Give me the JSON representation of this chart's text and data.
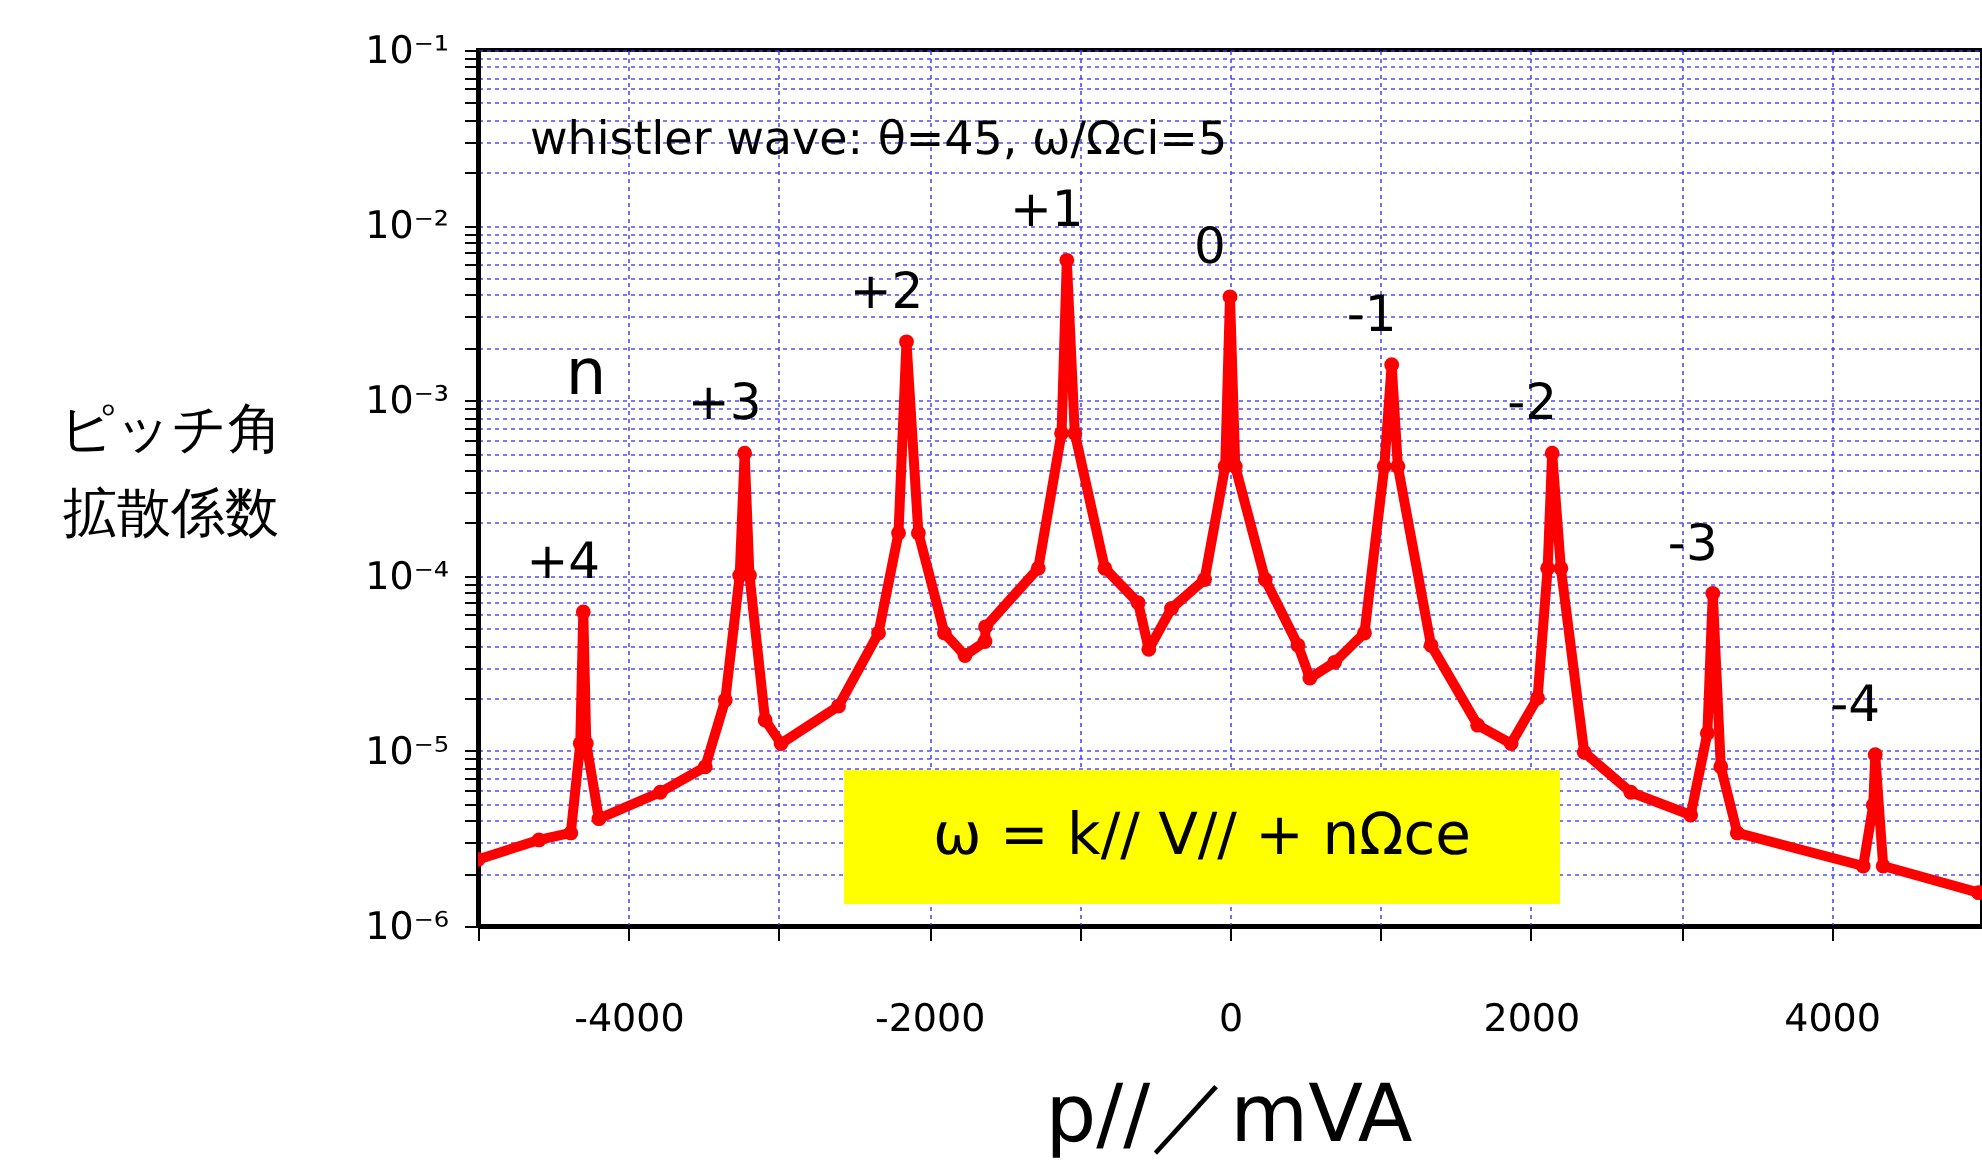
{
  "chart_data": {
    "type": "line",
    "title": "whistler wave:  θ=45, ω/Ωci=5",
    "xlabel": "p//／mVA",
    "ylabel": "ピッチ角拡散係数",
    "annotations": [
      {
        "text": "+4",
        "x": -4300,
        "y": 6.2e-05
      },
      {
        "text": "+3",
        "x": -3227,
        "y": 0.0005
      },
      {
        "text": "+2",
        "x": -2151,
        "y": 0.00216
      },
      {
        "text": "+1",
        "x": -1085,
        "y": 0.0063
      },
      {
        "text": "0",
        "x": 0,
        "y": 0.0039
      },
      {
        "text": "-1",
        "x": 1075,
        "y": 0.0016
      },
      {
        "text": "-2",
        "x": 2142,
        "y": 0.0005
      },
      {
        "text": "-3",
        "x": 3210,
        "y": 7.9e-05
      },
      {
        "text": "-4",
        "x": 4290,
        "y": 9.5e-06
      },
      "n",
      "ω = k// V//  +  nΩce"
    ],
    "log": "y",
    "grid": true,
    "marker": "circle",
    "line_style": "solid",
    "xlim": [
      -5000,
      5000
    ],
    "ylim": [
      1e-06,
      0.1
    ],
    "xticks": [
      {
        "value": -5000,
        "label": null
      },
      -4000,
      {
        "value": -3000,
        "label": null
      },
      -2000,
      {
        "value": -1000,
        "label": null
      },
      0,
      {
        "value": 1000,
        "label": null
      },
      2000,
      {
        "value": 3000,
        "label": null
      },
      4000,
      {
        "value": 5000,
        "label": null
      }
    ],
    "yticks": [
      {
        "value": 1e-06,
        "label": "10⁻⁶"
      },
      {
        "value": 2e-06,
        "label": null
      },
      {
        "value": 3e-06,
        "label": null
      },
      {
        "value": 4e-06,
        "label": null
      },
      {
        "value": 5e-06,
        "label": null
      },
      {
        "value": 6e-06,
        "label": null
      },
      {
        "value": 7e-06,
        "label": null
      },
      {
        "value": 8e-06,
        "label": null
      },
      {
        "value": 9e-06,
        "label": null
      },
      {
        "value": 1e-05,
        "label": "10⁻⁵"
      },
      {
        "value": 2e-05,
        "label": null
      },
      {
        "value": 3e-05,
        "label": null
      },
      {
        "value": 4e-05,
        "label": null
      },
      {
        "value": 5e-05,
        "label": null
      },
      {
        "value": 6e-05,
        "label": null
      },
      {
        "value": 7e-05,
        "label": null
      },
      {
        "value": 8e-05,
        "label": null
      },
      {
        "value": 9e-05,
        "label": null
      },
      {
        "value": 0.0001,
        "label": "10⁻⁴"
      },
      {
        "value": 0.0002,
        "label": null
      },
      {
        "value": 0.0003,
        "label": null
      },
      {
        "value": 0.0004,
        "label": null
      },
      {
        "value": 0.0005,
        "label": null
      },
      {
        "value": 0.0006,
        "label": null
      },
      {
        "value": 0.0007,
        "label": null
      },
      {
        "value": 0.0008,
        "label": null
      },
      {
        "value": 0.0009,
        "label": null
      },
      {
        "value": 0.001,
        "label": "10⁻³"
      },
      {
        "value": 0.002,
        "label": null
      },
      {
        "value": 0.003,
        "label": null
      },
      {
        "value": 0.004,
        "label": null
      },
      {
        "value": 0.005,
        "label": null
      },
      {
        "value": 0.006,
        "label": null
      },
      {
        "value": 0.007,
        "label": null
      },
      {
        "value": 0.008,
        "label": null
      },
      {
        "value": 0.009,
        "label": null
      },
      {
        "value": 0.01,
        "label": "10⁻²"
      },
      {
        "value": 0.02,
        "label": null
      },
      {
        "value": 0.03,
        "label": null
      },
      {
        "value": 0.04,
        "label": null
      },
      {
        "value": 0.05,
        "label": null
      },
      {
        "value": 0.06,
        "label": null
      },
      {
        "value": 0.07,
        "label": null
      },
      {
        "value": 0.08,
        "label": null
      },
      {
        "value": 0.09,
        "label": null
      },
      {
        "value": 0.1,
        "label": "10⁻¹"
      }
    ],
    "series": [
      {
        "color": "#ff0000",
        "x": [
          -5000,
          -4595,
          -4383,
          -4320,
          -4300,
          -4280,
          -4196,
          -3788,
          -3489,
          -3356,
          -3260,
          -3227,
          -3195,
          -3091,
          -2985,
          -2603,
          -2337,
          -2204,
          -2151,
          -2072,
          -1899,
          -1762,
          -1629,
          -1625,
          -1275,
          -1120,
          -1085,
          -1032,
          -832,
          -611,
          -540,
          -389,
          -169,
          -32,
          0,
          35,
          234,
          452,
          531,
          695,
          894,
          1026,
          1075,
          1116,
          1337,
          1647,
          1869,
          2045,
          2112,
          2142,
          2200,
          2355,
          2665,
          3063,
          3174,
          3210,
          3263,
          3373,
          4210,
          4277,
          4290,
          4343,
          4977
        ],
        "values": [
          2.4e-06,
          3.1e-06,
          3.4e-06,
          1.1e-05,
          6.2e-05,
          1.1e-05,
          4.1e-06,
          5.8e-06,
          8.1e-06,
          1.95e-05,
          0.0001,
          0.0005,
          0.0001,
          1.5e-05,
          1.1e-05,
          1.8e-05,
          4.7e-05,
          0.000175,
          0.00216,
          0.000175,
          4.7e-05,
          3.5e-05,
          4.2e-05,
          5.1e-05,
          0.00011,
          0.00065,
          0.0063,
          0.00065,
          0.00011,
          7e-05,
          3.8e-05,
          6.5e-05,
          9.5e-05,
          0.00042,
          0.0039,
          0.00042,
          9.5e-05,
          4e-05,
          2.6e-05,
          3.2e-05,
          4.7e-05,
          0.00042,
          0.0016,
          0.00042,
          4e-05,
          1.4e-05,
          1.1e-05,
          2e-05,
          0.00011,
          0.0005,
          0.00011,
          9.8e-06,
          5.8e-06,
          4.3e-06,
          1.26e-05,
          7.9e-05,
          8.1e-06,
          3.4e-06,
          2.2e-06,
          4.9e-06,
          9.5e-06,
          2.2e-06,
          1.55e-06
        ]
      }
    ]
  }
}
